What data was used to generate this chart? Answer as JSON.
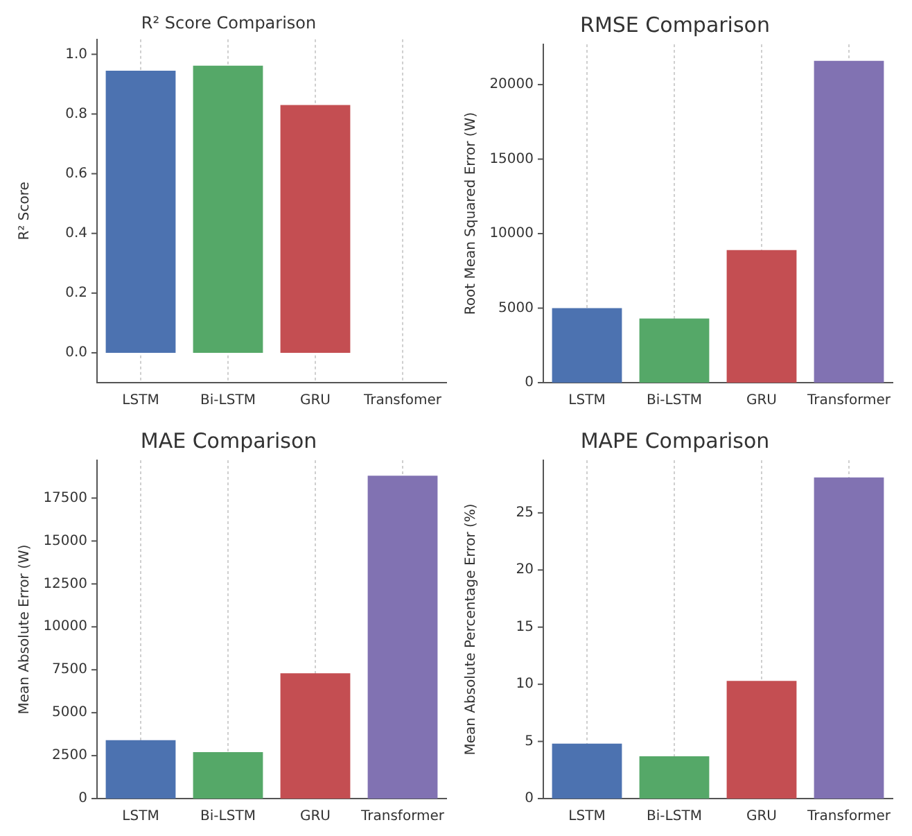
{
  "chart_data": [
    {
      "type": "bar",
      "title": "R² Score Comparison",
      "ylabel": "R² Score",
      "categories": [
        "LSTM",
        "Bi-LSTM",
        "GRU",
        "Transfomer"
      ],
      "values": [
        0.945,
        0.962,
        0.83,
        null
      ],
      "colors": [
        "#4c72b0",
        "#55a868",
        "#c44e52",
        "#8172b2"
      ],
      "ylim": [
        -0.1,
        1.05
      ],
      "yticks": [
        {
          "value": 0,
          "label": "0.0"
        },
        {
          "value": 0.2,
          "label": "0.2"
        },
        {
          "value": 0.4,
          "label": "0.4"
        },
        {
          "value": 0.6,
          "label": "0.6"
        },
        {
          "value": 0.8,
          "label": "0.8"
        },
        {
          "value": 1,
          "label": "1.0"
        }
      ],
      "grid": "x"
    },
    {
      "type": "bar",
      "title": "RMSE Comparison",
      "ylabel": "Root Mean Squared Error (W)",
      "categories": [
        "LSTM",
        "Bi-LSTM",
        "GRU",
        "Transformer"
      ],
      "values": [
        5000,
        4300,
        8900,
        21600
      ],
      "colors": [
        "#4c72b0",
        "#55a868",
        "#c44e52",
        "#8172b2"
      ],
      "ylim": [
        0,
        22700
      ],
      "yticks": [
        0,
        5000,
        10000,
        15000,
        20000
      ],
      "grid": "x"
    },
    {
      "type": "bar",
      "title": "MAE Comparison",
      "ylabel": "Mean Absolute Error (W)",
      "categories": [
        "LSTM",
        "Bi-LSTM",
        "GRU",
        "Transformer"
      ],
      "values": [
        3400,
        2700,
        7300,
        18800
      ],
      "colors": [
        "#4c72b0",
        "#55a868",
        "#c44e52",
        "#8172b2"
      ],
      "ylim": [
        0,
        19700
      ],
      "yticks": [
        0,
        2500,
        5000,
        7500,
        10000,
        12500,
        15000,
        17500
      ],
      "grid": "x"
    },
    {
      "type": "bar",
      "title": "MAPE Comparison",
      "ylabel": "Mean Absolute Percentage Error (%)",
      "categories": [
        "LSTM",
        "Bi-LSTM",
        "GRU",
        "Transformer"
      ],
      "values": [
        4.8,
        3.7,
        10.3,
        28.1
      ],
      "colors": [
        "#4c72b0",
        "#55a868",
        "#c44e52",
        "#8172b2"
      ],
      "ylim": [
        0,
        29.6
      ],
      "yticks": [
        0,
        5,
        10,
        15,
        20,
        25
      ],
      "grid": "x"
    }
  ]
}
